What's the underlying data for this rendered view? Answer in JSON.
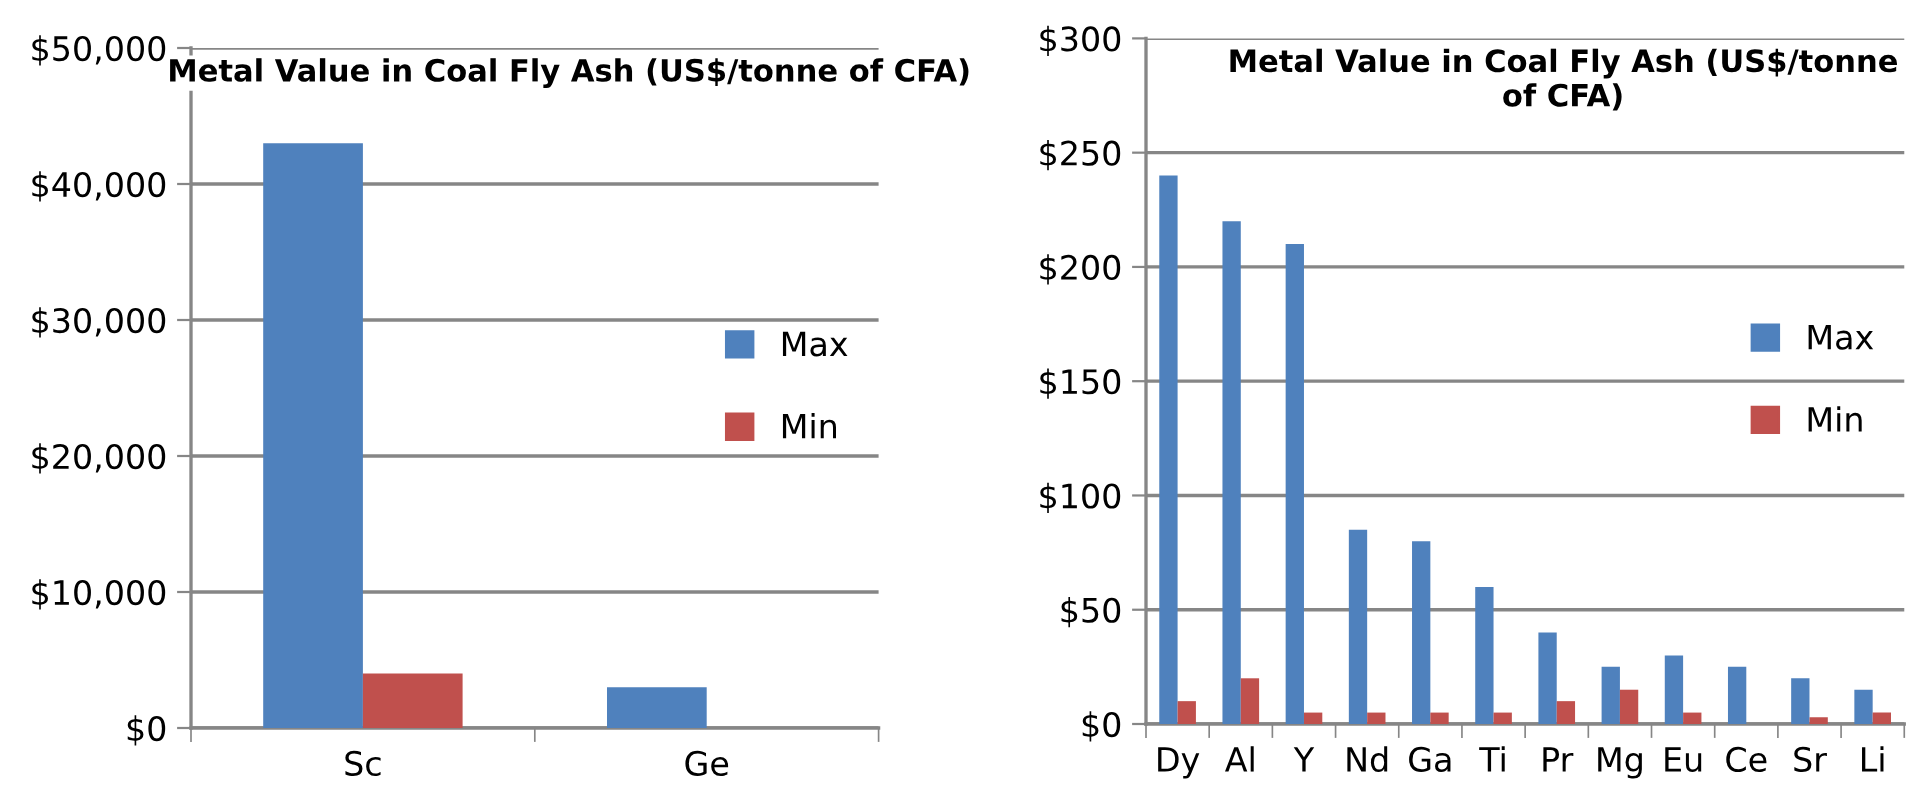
{
  "chart_data": [
    {
      "type": "bar",
      "title": "Metal Value in Coal Fly Ash (US$/tonne of CFA)",
      "categories": [
        "Sc",
        "Ge"
      ],
      "series": [
        {
          "name": "Max",
          "color": "#4f81bd",
          "values": [
            43000,
            3000
          ]
        },
        {
          "name": "Min",
          "color": "#c0504d",
          "values": [
            4000,
            null
          ]
        }
      ],
      "ylim": [
        0,
        50000
      ],
      "yticks": [
        {
          "value": 0,
          "label": "$0"
        },
        {
          "value": 10000,
          "label": "$10,000"
        },
        {
          "value": 20000,
          "label": "$20,000"
        },
        {
          "value": 30000,
          "label": "$30,000"
        },
        {
          "value": 40000,
          "label": "$40,000"
        },
        {
          "value": 50000,
          "label": "$50,000"
        }
      ],
      "grid": "y",
      "legend": "right"
    },
    {
      "type": "bar",
      "title": "Metal Value in Coal Fly Ash (US$/tonne of CFA)",
      "categories": [
        "Dy",
        "Al",
        "Y",
        "Nd",
        "Ga",
        "Ti",
        "Pr",
        "Mg",
        "Eu",
        "Ce",
        "Sr",
        "Li"
      ],
      "series": [
        {
          "name": "Max",
          "color": "#4f81bd",
          "values": [
            240,
            220,
            210,
            85,
            80,
            60,
            40,
            25,
            30,
            25,
            20,
            15
          ]
        },
        {
          "name": "Min",
          "color": "#c0504d",
          "values": [
            10,
            20,
            5,
            5,
            5,
            5,
            10,
            15,
            5,
            null,
            3,
            5
          ]
        }
      ],
      "ylim": [
        0,
        300
      ],
      "yticks": [
        {
          "value": 0,
          "label": "$0"
        },
        {
          "value": 50,
          "label": "$50"
        },
        {
          "value": 100,
          "label": "$100"
        },
        {
          "value": 150,
          "label": "$150"
        },
        {
          "value": 200,
          "label": "$200"
        },
        {
          "value": 250,
          "label": "$250"
        },
        {
          "value": 300,
          "label": "$300"
        }
      ],
      "grid": "y",
      "legend": "right"
    }
  ]
}
